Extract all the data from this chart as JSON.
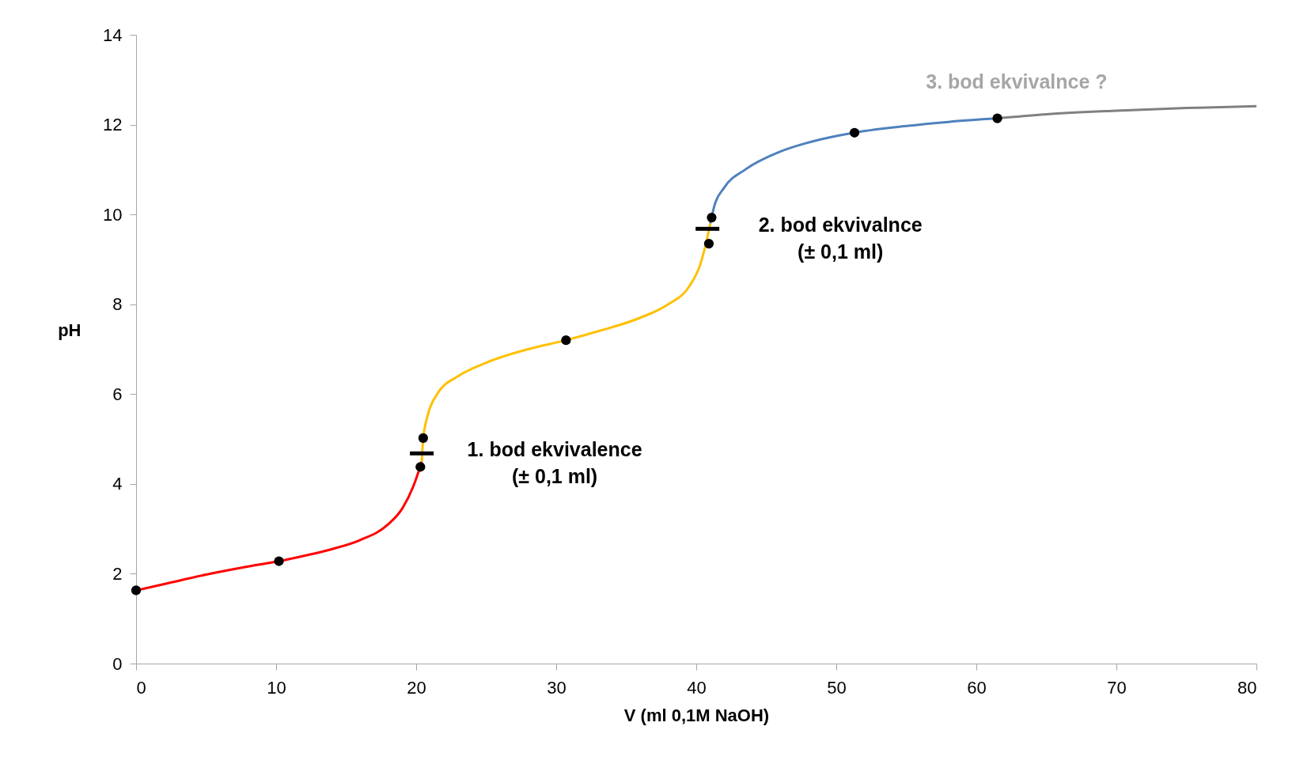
{
  "chart_data": {
    "type": "line",
    "xlabel": "V (ml 0,1M NaOH)",
    "ylabel": "pH",
    "xlim": [
      0,
      80
    ],
    "ylim": [
      0,
      14
    ],
    "xticks": [
      0,
      10,
      20,
      30,
      40,
      50,
      60,
      70,
      80
    ],
    "yticks": [
      0,
      2,
      4,
      6,
      8,
      10,
      12,
      14
    ],
    "grid": false,
    "series": [
      {
        "type": "line",
        "color": "#ff0000",
        "x": [
          0,
          2,
          5,
          8,
          10.2,
          12,
          14,
          16,
          18,
          19,
          19.8,
          20.2,
          20.4
        ],
        "values": [
          1.63,
          1.77,
          1.98,
          2.16,
          2.28,
          2.4,
          2.55,
          2.75,
          3.1,
          3.45,
          3.95,
          4.3,
          4.5
        ]
      },
      {
        "type": "line",
        "color": "#ffc000",
        "x": [
          20.4,
          20.5,
          20.8,
          21.5,
          23,
          25,
          28,
          30.7,
          33,
          36,
          38,
          39.5,
          40.3,
          40.8,
          41
        ],
        "values": [
          4.5,
          5.0,
          5.5,
          6.0,
          6.4,
          6.7,
          7.0,
          7.2,
          7.4,
          7.7,
          8.0,
          8.4,
          8.9,
          9.5,
          9.8
        ]
      },
      {
        "type": "line",
        "color": "#4f81bd",
        "x": [
          41,
          41.3,
          42,
          43.5,
          46,
          49,
          51.3,
          55,
          58,
          61.5
        ],
        "values": [
          9.8,
          10.2,
          10.6,
          11.0,
          11.4,
          11.68,
          11.82,
          11.97,
          12.06,
          12.14
        ]
      },
      {
        "type": "line",
        "color": "#808080",
        "x": [
          61.5,
          65,
          70,
          75,
          80
        ],
        "values": [
          12.14,
          12.23,
          12.31,
          12.37,
          12.41
        ]
      },
      {
        "type": "scatter",
        "color": "#000000",
        "x": [
          0,
          10.2,
          20.3,
          20.5,
          30.7,
          40.9,
          41.1,
          51.3,
          61.5
        ],
        "values": [
          1.63,
          2.28,
          4.38,
          5.02,
          7.2,
          9.35,
          9.93,
          11.82,
          12.14
        ]
      }
    ],
    "annotations": [
      {
        "text": "1. bod ekvivalence\n(± 0,1 ml)",
        "x": 20.4,
        "y": 4.68
      },
      {
        "text": "2. bod ekvivalnce\n(± 0,1 ml)",
        "x": 40.8,
        "y": 9.68
      },
      "3. bod ekvivalnce ?"
    ]
  }
}
